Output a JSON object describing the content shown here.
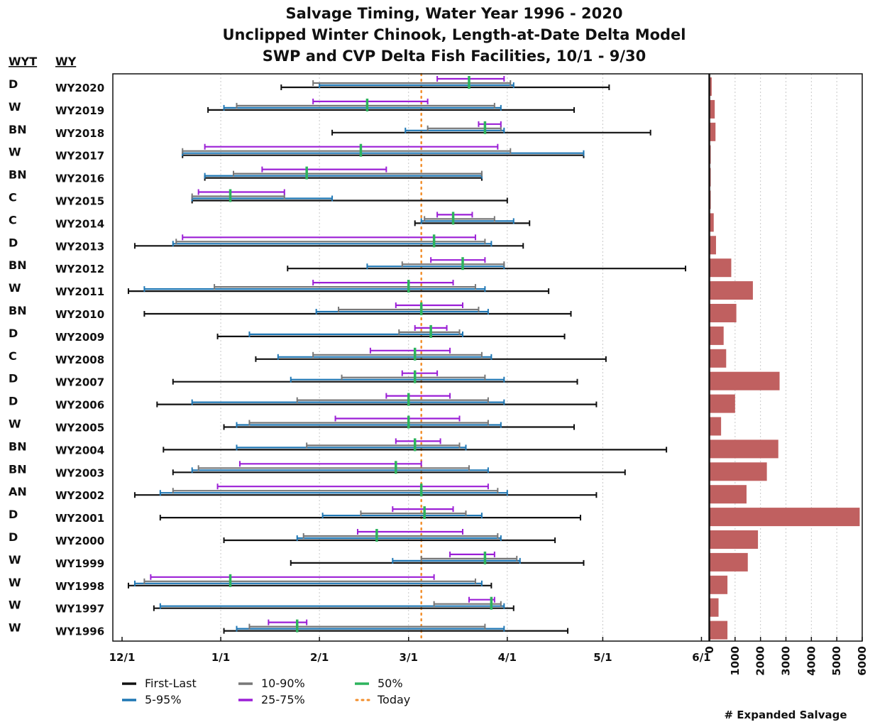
{
  "chart_data": {
    "type": "range-bar",
    "title": [
      "Salvage Timing, Water Year 1996 - 2020",
      "Unclipped Winter Chinook, Length-at-Date Delta Model",
      "SWP and CVP Delta Fish Facilities, 10/1 - 9/30"
    ],
    "column_headers": {
      "wyt": "WYT",
      "wy": "WY"
    },
    "date_axis": {
      "ticks": [
        "12/1",
        "1/1",
        "2/1",
        "3/1",
        "4/1",
        "5/1",
        "6/1"
      ],
      "range": [
        "12/1",
        "6/1"
      ],
      "today": "3/5"
    },
    "salvage_axis": {
      "label": "# Expanded Salvage",
      "ticks": [
        0,
        1000,
        2000,
        3000,
        4000,
        5000,
        6000
      ],
      "range": [
        0,
        6000
      ]
    },
    "legend": [
      {
        "key": "first_last",
        "label": "First-Last",
        "color": "#111111",
        "style": "line"
      },
      {
        "key": "p5_95",
        "label": "5-95%",
        "color": "#1f77b4",
        "style": "line"
      },
      {
        "key": "p10_90",
        "label": "10-90%",
        "color": "#777777",
        "style": "line"
      },
      {
        "key": "p25_75",
        "label": "25-75%",
        "color": "#9b1fd6",
        "style": "line"
      },
      {
        "key": "p50",
        "label": "50%",
        "color": "#2db35d",
        "style": "line"
      },
      {
        "key": "today",
        "label": "Today",
        "color": "#f28e2b",
        "style": "dotted"
      }
    ],
    "years": [
      {
        "wy": "WY2020",
        "wyt": "D",
        "first_last": [
          "1/20",
          "5/3"
        ],
        "p5_95": [
          "2/1",
          "4/3"
        ],
        "p10_90": [
          "1/30",
          "4/2"
        ],
        "p25_75": [
          "3/10",
          "3/31"
        ],
        "p50": "3/20",
        "salvage": 80
      },
      {
        "wy": "WY2019",
        "wyt": "W",
        "first_last": [
          "12/28",
          "4/22"
        ],
        "p5_95": [
          "1/2",
          "3/30"
        ],
        "p10_90": [
          "1/6",
          "3/28"
        ],
        "p25_75": [
          "1/30",
          "3/7"
        ],
        "p50": "2/16",
        "salvage": 200
      },
      {
        "wy": "WY2018",
        "wyt": "BN",
        "first_last": [
          "2/5",
          "5/16"
        ],
        "p5_95": [
          "2/28",
          "3/31"
        ],
        "p10_90": [
          "3/7",
          "3/30"
        ],
        "p25_75": [
          "3/23",
          "3/30"
        ],
        "p50": "3/25",
        "salvage": 230
      },
      {
        "wy": "WY2017",
        "wyt": "W",
        "first_last": [
          "12/20",
          "4/25"
        ],
        "p5_95": [
          "12/20",
          "4/25"
        ],
        "p10_90": [
          "12/20",
          "4/2"
        ],
        "p25_75": [
          "12/27",
          "3/29"
        ],
        "p50": "2/14",
        "salvage": 0
      },
      {
        "wy": "WY2016",
        "wyt": "BN",
        "first_last": [
          "12/27",
          "3/24"
        ],
        "p5_95": [
          "12/27",
          "3/24"
        ],
        "p10_90": [
          "1/5",
          "3/24"
        ],
        "p25_75": [
          "1/14",
          "2/22"
        ],
        "p50": "1/28",
        "salvage": 0
      },
      {
        "wy": "WY2015",
        "wyt": "C",
        "first_last": [
          "12/23",
          "4/1"
        ],
        "p5_95": [
          "12/23",
          "2/5"
        ],
        "p10_90": [
          "12/23",
          "1/21"
        ],
        "p25_75": [
          "12/25",
          "1/21"
        ],
        "p50": "1/4",
        "salvage": 0
      },
      {
        "wy": "WY2014",
        "wyt": "C",
        "first_last": [
          "3/3",
          "4/8"
        ],
        "p5_95": [
          "3/5",
          "4/3"
        ],
        "p10_90": [
          "3/6",
          "3/28"
        ],
        "p25_75": [
          "3/10",
          "3/21"
        ],
        "p50": "3/15",
        "salvage": 160
      },
      {
        "wy": "WY2013",
        "wyt": "D",
        "first_last": [
          "12/5",
          "4/6"
        ],
        "p5_95": [
          "12/17",
          "3/27"
        ],
        "p10_90": [
          "12/18",
          "3/25"
        ],
        "p25_75": [
          "12/20",
          "3/22"
        ],
        "p50": "3/9",
        "salvage": 250
      },
      {
        "wy": "WY2012",
        "wyt": "BN",
        "first_last": [
          "1/22",
          "5/27"
        ],
        "p5_95": [
          "2/16",
          "3/31"
        ],
        "p10_90": [
          "2/27",
          "3/31"
        ],
        "p25_75": [
          "3/8",
          "3/25"
        ],
        "p50": "3/18",
        "salvage": 850
      },
      {
        "wy": "WY2011",
        "wyt": "W",
        "first_last": [
          "12/3",
          "4/14"
        ],
        "p5_95": [
          "12/8",
          "3/25"
        ],
        "p10_90": [
          "12/30",
          "3/22"
        ],
        "p25_75": [
          "1/30",
          "3/15"
        ],
        "p50": "3/1",
        "salvage": 1700
      },
      {
        "wy": "WY2010",
        "wyt": "BN",
        "first_last": [
          "12/8",
          "4/21"
        ],
        "p5_95": [
          "1/31",
          "3/26"
        ],
        "p10_90": [
          "2/7",
          "3/23"
        ],
        "p25_75": [
          "2/25",
          "3/18"
        ],
        "p50": "3/5",
        "salvage": 1050
      },
      {
        "wy": "WY2009",
        "wyt": "D",
        "first_last": [
          "12/31",
          "4/19"
        ],
        "p5_95": [
          "1/10",
          "3/18"
        ],
        "p10_90": [
          "2/26",
          "3/17"
        ],
        "p25_75": [
          "3/3",
          "3/13"
        ],
        "p50": "3/8",
        "salvage": 550
      },
      {
        "wy": "WY2008",
        "wyt": "C",
        "first_last": [
          "1/12",
          "5/2"
        ],
        "p5_95": [
          "1/19",
          "3/27"
        ],
        "p10_90": [
          "1/30",
          "3/24"
        ],
        "p25_75": [
          "2/17",
          "3/14"
        ],
        "p50": "3/3",
        "salvage": 650
      },
      {
        "wy": "WY2007",
        "wyt": "D",
        "first_last": [
          "12/17",
          "4/23"
        ],
        "p5_95": [
          "1/23",
          "3/31"
        ],
        "p10_90": [
          "2/8",
          "3/25"
        ],
        "p25_75": [
          "2/27",
          "3/10"
        ],
        "p50": "3/3",
        "salvage": 2750
      },
      {
        "wy": "WY2006",
        "wyt": "D",
        "first_last": [
          "12/12",
          "4/29"
        ],
        "p5_95": [
          "12/23",
          "3/31"
        ],
        "p10_90": [
          "1/25",
          "3/26"
        ],
        "p25_75": [
          "2/22",
          "3/14"
        ],
        "p50": "3/1",
        "salvage": 1000
      },
      {
        "wy": "WY2005",
        "wyt": "W",
        "first_last": [
          "1/2",
          "4/22"
        ],
        "p5_95": [
          "1/6",
          "3/30"
        ],
        "p10_90": [
          "1/10",
          "3/26"
        ],
        "p25_75": [
          "2/6",
          "3/17"
        ],
        "p50": "3/1",
        "salvage": 450
      },
      {
        "wy": "WY2004",
        "wyt": "BN",
        "first_last": [
          "12/14",
          "5/21"
        ],
        "p5_95": [
          "1/6",
          "3/19"
        ],
        "p10_90": [
          "1/28",
          "3/17"
        ],
        "p25_75": [
          "2/25",
          "3/11"
        ],
        "p50": "3/3",
        "salvage": 2700
      },
      {
        "wy": "WY2003",
        "wyt": "BN",
        "first_last": [
          "12/17",
          "5/8"
        ],
        "p5_95": [
          "12/23",
          "3/26"
        ],
        "p10_90": [
          "12/25",
          "3/20"
        ],
        "p25_75": [
          "1/7",
          "3/5"
        ],
        "p50": "2/25",
        "salvage": 2250
      },
      {
        "wy": "WY2002",
        "wyt": "AN",
        "first_last": [
          "12/5",
          "4/29"
        ],
        "p5_95": [
          "12/13",
          "4/1"
        ],
        "p10_90": [
          "12/17",
          "3/29"
        ],
        "p25_75": [
          "12/31",
          "3/26"
        ],
        "p50": "3/5",
        "salvage": 1450
      },
      {
        "wy": "WY2001",
        "wyt": "D",
        "first_last": [
          "12/13",
          "4/24"
        ],
        "p5_95": [
          "2/2",
          "3/24"
        ],
        "p10_90": [
          "2/14",
          "3/19"
        ],
        "p25_75": [
          "2/24",
          "3/15"
        ],
        "p50": "3/6",
        "salvage": 5900
      },
      {
        "wy": "WY2000",
        "wyt": "D",
        "first_last": [
          "1/2",
          "4/16"
        ],
        "p5_95": [
          "1/25",
          "3/30"
        ],
        "p10_90": [
          "1/27",
          "3/29"
        ],
        "p25_75": [
          "2/13",
          "3/18"
        ],
        "p50": "2/19",
        "salvage": 1900
      },
      {
        "wy": "WY1999",
        "wyt": "W",
        "first_last": [
          "1/23",
          "4/25"
        ],
        "p5_95": [
          "2/24",
          "4/5"
        ],
        "p10_90": [
          "3/5",
          "4/4"
        ],
        "p25_75": [
          "3/14",
          "3/28"
        ],
        "p50": "3/25",
        "salvage": 1500
      },
      {
        "wy": "WY1998",
        "wyt": "W",
        "first_last": [
          "12/3",
          "3/27"
        ],
        "p5_95": [
          "12/5",
          "3/24"
        ],
        "p10_90": [
          "12/8",
          "3/22"
        ],
        "p25_75": [
          "12/10",
          "3/9"
        ],
        "p50": "1/4",
        "salvage": 700
      },
      {
        "wy": "WY1997",
        "wyt": "W",
        "first_last": [
          "12/11",
          "4/3"
        ],
        "p5_95": [
          "12/13",
          "3/31"
        ],
        "p10_90": [
          "3/9",
          "3/30"
        ],
        "p25_75": [
          "3/20",
          "3/28"
        ],
        "p50": "3/27",
        "salvage": 350
      },
      {
        "wy": "WY1996",
        "wyt": "W",
        "first_last": [
          "1/2",
          "4/20"
        ],
        "p5_95": [
          "1/6",
          "3/31"
        ],
        "p10_90": [
          "1/10",
          "3/25"
        ],
        "p25_75": [
          "1/16",
          "1/28"
        ],
        "p50": "1/25",
        "salvage": 700
      }
    ],
    "colors": {
      "salvage_bar": "#c06060",
      "grid": "#c8c8c8"
    }
  }
}
